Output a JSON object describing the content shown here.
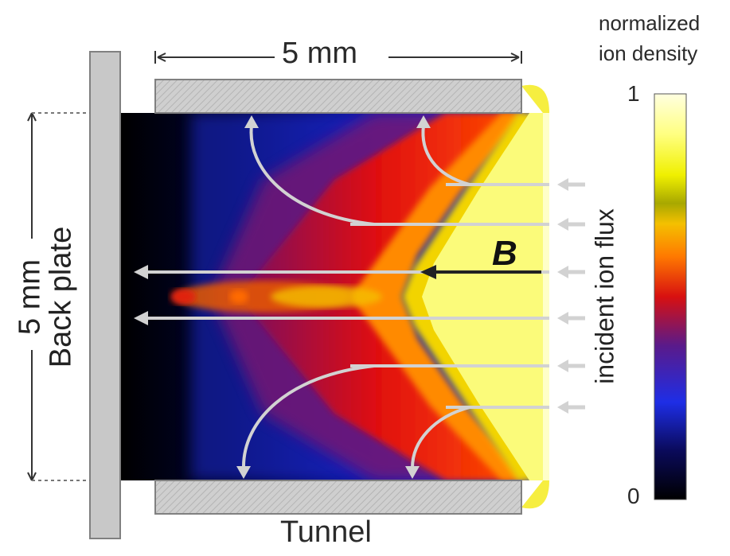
{
  "labels": {
    "width_dim": "5 mm",
    "height_dim": "5 mm",
    "back_plate": "Back plate",
    "tunnel": "Tunnel",
    "field": "B",
    "incident_flux": "incident ion flux"
  },
  "colorbar": {
    "title_line1": "normalized",
    "title_line2": "ion density",
    "max_label": "1",
    "min_label": "0",
    "stops": [
      "#000000",
      "#0a0a5a",
      "#1e2ee6",
      "#5a1a8a",
      "#d81010",
      "#ff7a00",
      "#f4c000",
      "#c8c800",
      "#ffff60",
      "#ffffdd"
    ]
  },
  "colors": {
    "plate_fill": "#c8c8c8",
    "plate_stroke": "#808080",
    "arrow_light": "#d2d2d2",
    "arrow_dark": "#222222"
  }
}
